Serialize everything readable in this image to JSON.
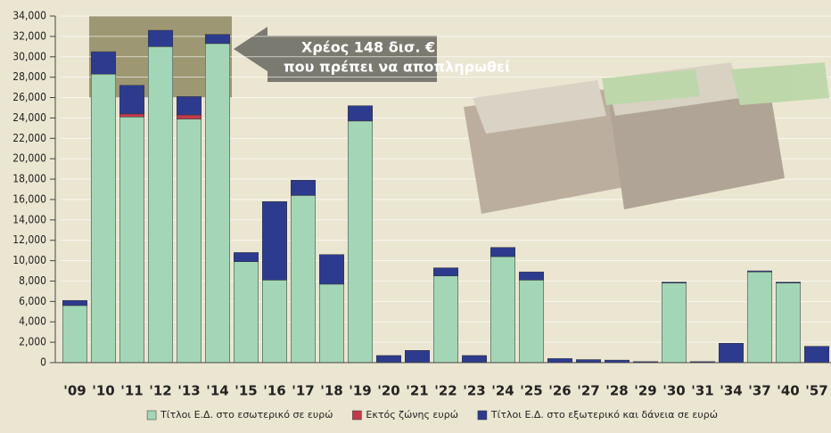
{
  "chart_data": {
    "type": "stacked-bar",
    "annotation": [
      "Χρέος 148 δισ. €",
      "που πρέπει να αποπληρωθεί"
    ],
    "categories": [
      "'09",
      "'10",
      "'11",
      "'12",
      "'13",
      "'14",
      "'15",
      "'16",
      "'17",
      "'18",
      "'19",
      "'20",
      "'21",
      "'22",
      "'23",
      "'24",
      "'25",
      "'26",
      "'27",
      "'28",
      "'29",
      "'30",
      "'31",
      "'34",
      "'37",
      "'40",
      "'57"
    ],
    "series": [
      {
        "name": "Τίτλοι Ε.Δ. στο εσωτερικό σε ευρώ",
        "color": "#a3d6b6",
        "values": [
          5600,
          28300,
          24100,
          31000,
          23900,
          31300,
          9900,
          8100,
          16400,
          7700,
          23700,
          0,
          0,
          8500,
          0,
          10400,
          8100,
          0,
          0,
          0,
          0,
          7800,
          0,
          0,
          8900,
          7800,
          0
        ]
      },
      {
        "name": "Εκτός ζώνης ευρώ",
        "color": "#c23a4c",
        "values": [
          0,
          0,
          300,
          0,
          400,
          0,
          0,
          0,
          0,
          0,
          0,
          0,
          0,
          0,
          0,
          0,
          0,
          0,
          0,
          0,
          0,
          0,
          0,
          0,
          0,
          0,
          0
        ]
      },
      {
        "name": "Τίτλοι Ε.Δ. στο εξωτερικό και δάνεια σε ευρώ",
        "color": "#2d3b8e",
        "values": [
          500,
          2200,
          2800,
          1600,
          1800,
          900,
          900,
          7700,
          1500,
          2900,
          1500,
          700,
          1200,
          800,
          700,
          900,
          800,
          400,
          300,
          250,
          100,
          100,
          100,
          1900,
          100,
          100,
          1600
        ]
      }
    ],
    "ylim": [
      0,
      34000
    ],
    "yticks": [
      0,
      {
        "value": 2000,
        "label": "2,000"
      },
      {
        "value": 4000,
        "label": "4,000"
      },
      {
        "value": 6000,
        "label": "6,000"
      },
      {
        "value": 8000,
        "label": "8,000"
      },
      {
        "value": 10000,
        "label": "10,000"
      },
      {
        "value": 12000,
        "label": "12,000"
      },
      {
        "value": 14000,
        "label": "14,000"
      },
      {
        "value": 16000,
        "label": "16,000"
      },
      {
        "value": 18000,
        "label": "18,000"
      },
      {
        "value": 20000,
        "label": "20,000"
      },
      {
        "value": 22000,
        "label": "22,000"
      },
      {
        "value": 24000,
        "label": "24,000"
      },
      {
        "value": 26000,
        "label": "26,000"
      },
      {
        "value": 28000,
        "label": "28,000"
      },
      {
        "value": 30000,
        "label": "30,000"
      },
      {
        "value": 32000,
        "label": "32,000"
      },
      {
        "value": 34000,
        "label": "34,000"
      }
    ],
    "grid": true
  }
}
